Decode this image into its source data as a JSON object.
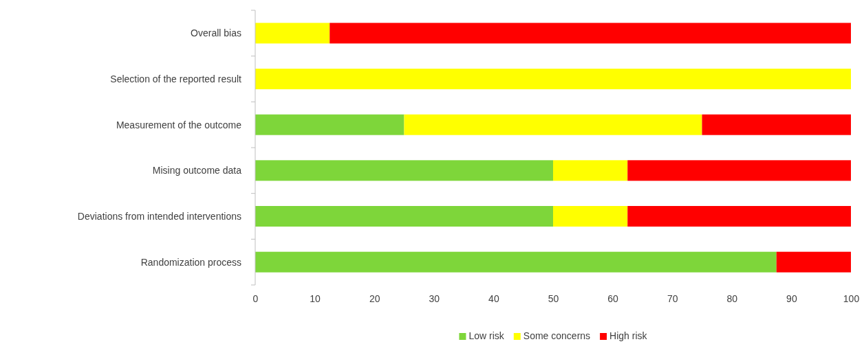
{
  "chart_data": {
    "type": "bar",
    "orientation": "horizontal",
    "stacked": true,
    "categories": [
      "Overall bias",
      "Selection of the reported result",
      "Measurement of the outcome",
      "Mising outcome data",
      "Deviations from intended interventions",
      "Randomization process"
    ],
    "series": [
      {
        "name": "Low risk",
        "color": "#7ed63a",
        "values": [
          0,
          0,
          25,
          50,
          50,
          87.5
        ]
      },
      {
        "name": "Some concerns",
        "color": "#ffff00",
        "values": [
          12.5,
          100,
          50,
          12.5,
          12.5,
          0
        ]
      },
      {
        "name": "High risk",
        "color": "#ff0000",
        "values": [
          87.5,
          0,
          25,
          37.5,
          37.5,
          12.5
        ]
      }
    ],
    "xlim": [
      0,
      100
    ],
    "xticks": [
      0,
      10,
      20,
      30,
      40,
      50,
      60,
      70,
      80,
      90,
      100
    ],
    "grid": false,
    "legend": "bottom"
  }
}
